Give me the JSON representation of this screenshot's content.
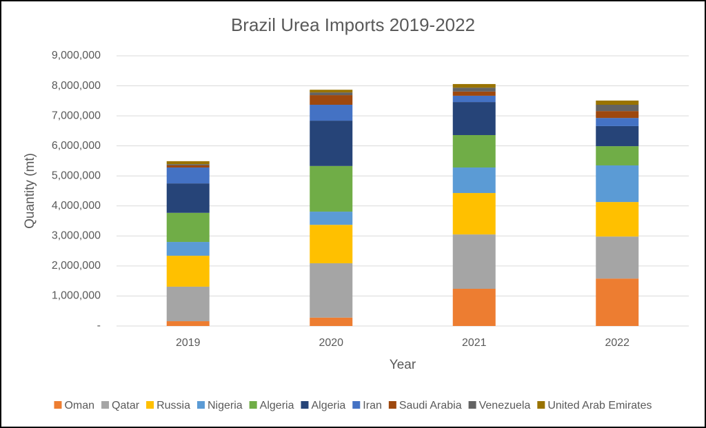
{
  "chart_data": {
    "type": "stacked-bar",
    "title": "Brazil Urea Imports 2019-2022",
    "x_label": "Year",
    "y_label": "Quantity (mt)",
    "categories": [
      "2019",
      "2020",
      "2021",
      "2022"
    ],
    "series": [
      {
        "name": "Oman",
        "color": "#ed7d31",
        "values": [
          160000,
          280000,
          1240000,
          1580000
        ]
      },
      {
        "name": "Qatar",
        "color": "#a5a5a5",
        "values": [
          1150000,
          1810000,
          1810000,
          1400000
        ]
      },
      {
        "name": "Russia",
        "color": "#ffc000",
        "values": [
          1030000,
          1280000,
          1380000,
          1150000
        ]
      },
      {
        "name": "Nigeria",
        "color": "#5b9bd5",
        "values": [
          460000,
          440000,
          850000,
          1220000
        ]
      },
      {
        "name": "Algeria",
        "color": "#70ad47",
        "values": [
          970000,
          1520000,
          1080000,
          640000
        ]
      },
      {
        "name": "Algeria",
        "color": "#264478",
        "values": [
          980000,
          1510000,
          1100000,
          670000
        ]
      },
      {
        "name": "Iran",
        "color": "#4472c4",
        "values": [
          530000,
          530000,
          210000,
          270000
        ]
      },
      {
        "name": "Saudi Arabia",
        "color": "#9e480e",
        "values": [
          70000,
          320000,
          140000,
          230000
        ]
      },
      {
        "name": "Venezuela",
        "color": "#636363",
        "values": [
          40000,
          90000,
          130000,
          210000
        ]
      },
      {
        "name": "United Arab Emirates",
        "color": "#997300",
        "values": [
          100000,
          90000,
          120000,
          140000
        ]
      }
    ],
    "ylim": [
      0,
      9000000
    ],
    "yticks": [
      {
        "value": 0,
        "label": "-"
      },
      {
        "value": 1000000,
        "label": "1,000,000"
      },
      {
        "value": 2000000,
        "label": "2,000,000"
      },
      {
        "value": 3000000,
        "label": "3,000,000"
      },
      {
        "value": 4000000,
        "label": "4,000,000"
      },
      {
        "value": 5000000,
        "label": "5,000,000"
      },
      {
        "value": 6000000,
        "label": "6,000,000"
      },
      {
        "value": 7000000,
        "label": "7,000,000"
      },
      {
        "value": 8000000,
        "label": "8,000,000"
      },
      {
        "value": 9000000,
        "label": "9,000,000"
      }
    ],
    "grid": true,
    "legend": "bottom"
  }
}
